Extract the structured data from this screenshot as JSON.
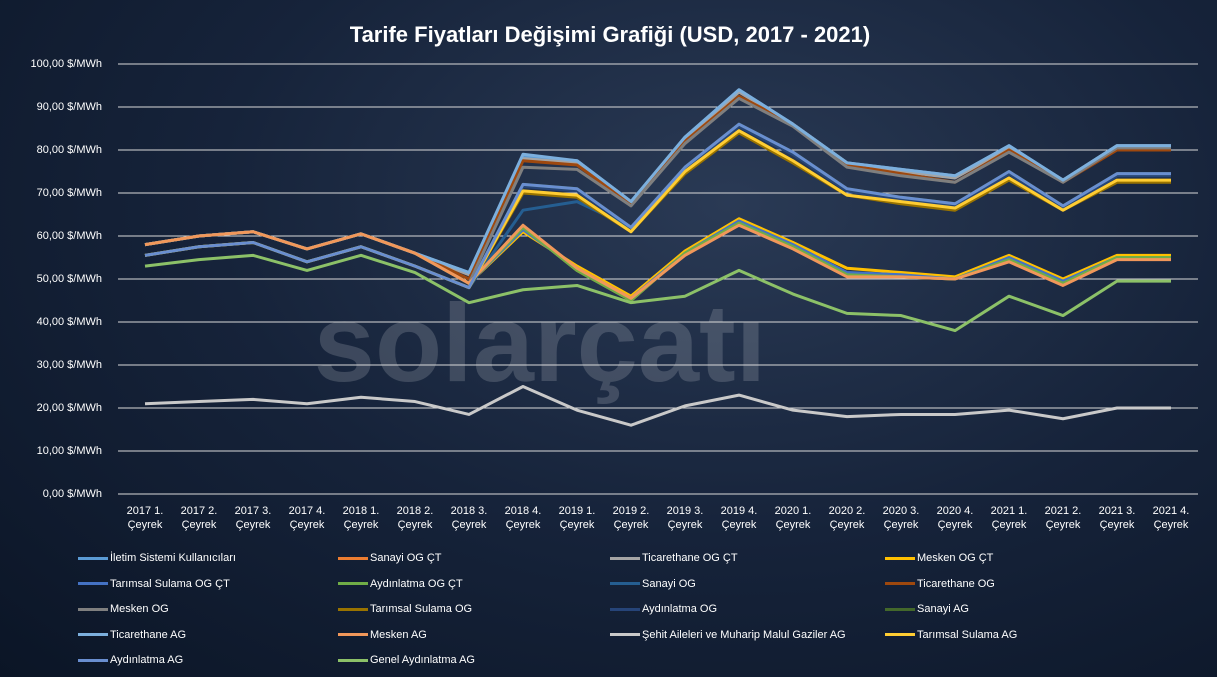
{
  "chart_data": {
    "type": "line",
    "title": "Tarife Fiyatları Değişimi Grafiği (USD, 2017 - 2021)",
    "watermark": "solarçatı",
    "categories": [
      "2017 1. Çeyrek",
      "2017 2. Çeyrek",
      "2017 3. Çeyrek",
      "2017 4. Çeyrek",
      "2018 1. Çeyrek",
      "2018 2. Çeyrek",
      "2018 3. Çeyrek",
      "2018 4. Çeyrek",
      "2019 1. Çeyrek",
      "2019 2. Çeyrek",
      "2019 3. Çeyrek",
      "2019 4. Çeyrek",
      "2020 1. Çeyrek",
      "2020 2. Çeyrek",
      "2020 3. Çeyrek",
      "2020 4. Çeyrek",
      "2021 1. Çeyrek",
      "2021 2. Çeyrek",
      "2021 3. Çeyrek",
      "2021 4. Çeyrek"
    ],
    "ylim": [
      0,
      100
    ],
    "yticks": [
      {
        "value": 0,
        "label": "0,00 $/MWh"
      },
      {
        "value": 10,
        "label": "10,00 $/MWh"
      },
      {
        "value": 20,
        "label": "20,00 $/MWh"
      },
      {
        "value": 30,
        "label": "30,00 $/MWh"
      },
      {
        "value": 40,
        "label": "40,00 $/MWh"
      },
      {
        "value": 50,
        "label": "50,00 $/MWh"
      },
      {
        "value": 60,
        "label": "60,00 $/MWh"
      },
      {
        "value": 70,
        "label": "70,00 $/MWh"
      },
      {
        "value": 80,
        "label": "80,00 $/MWh"
      },
      {
        "value": 90,
        "label": "90,00 $/MWh"
      },
      {
        "value": 100,
        "label": "100,00 $/MWh"
      }
    ],
    "grid": true,
    "series": [
      {
        "name": "İletim Sistemi Kullanıcıları",
        "color": "#5b9bd5",
        "values": [
          58,
          60,
          61,
          57,
          60.5,
          56,
          51.5,
          78.5,
          77.5,
          68,
          83,
          94,
          86,
          77,
          75.5,
          74,
          81,
          73,
          81,
          81
        ]
      },
      {
        "name": "Sanayi OG ÇT",
        "color": "#ed7d31",
        "values": [
          58,
          60,
          61,
          57,
          60.5,
          56,
          49,
          62,
          52,
          45,
          56,
          63,
          57.5,
          51,
          50.5,
          50,
          54.5,
          49,
          55,
          55
        ]
      },
      {
        "name": "Ticarethane OG ÇT",
        "color": "#a5a5a5",
        "values": [
          58,
          60,
          61,
          57,
          60.5,
          56,
          51,
          78,
          77,
          67.5,
          82.5,
          93.5,
          86,
          77,
          75,
          73.5,
          80.5,
          73,
          81,
          81
        ]
      },
      {
        "name": "Mesken OG ÇT",
        "color": "#ffc000",
        "values": [
          58,
          60,
          61,
          57,
          60.5,
          56,
          49,
          61,
          53,
          46,
          56.5,
          64,
          58.5,
          52.5,
          51.5,
          50.5,
          55.5,
          50,
          55.5,
          55.5
        ]
      },
      {
        "name": "Tarımsal Sulama OG ÇT",
        "color": "#4472c4",
        "values": [
          58,
          60,
          61,
          57,
          60.5,
          56,
          49,
          61.5,
          52.5,
          45.5,
          56,
          63.5,
          58,
          51.5,
          51,
          50,
          55,
          49.5,
          55,
          55
        ]
      },
      {
        "name": "Aydınlatma OG ÇT",
        "color": "#70ad47",
        "values": [
          58,
          60,
          61,
          57,
          60.5,
          56,
          49,
          62,
          52,
          45,
          56,
          63,
          57.5,
          51,
          50.5,
          50,
          54.5,
          49,
          55,
          55
        ]
      },
      {
        "name": "Sanayi OG",
        "color": "#255e91",
        "values": [
          55.5,
          57.5,
          58.5,
          54,
          57.5,
          53,
          48,
          66,
          68,
          62,
          75.5,
          85.5,
          79,
          70.5,
          68.5,
          67,
          74.5,
          66.5,
          74,
          74
        ]
      },
      {
        "name": "Ticarethane OG",
        "color": "#9e480e",
        "values": [
          58,
          60,
          61,
          57,
          60.5,
          56,
          50,
          77.5,
          76.5,
          67.5,
          82,
          92.5,
          86,
          76.5,
          74.5,
          72.5,
          80,
          72.5,
          80,
          80
        ]
      },
      {
        "name": "Mesken OG",
        "color": "#7f7f7f",
        "values": [
          58,
          60,
          61,
          57,
          60.5,
          56,
          49,
          76,
          75.5,
          67,
          81.5,
          92,
          85.5,
          76,
          74,
          72.5,
          79.5,
          72.5,
          80.5,
          80.5
        ]
      },
      {
        "name": "Tarımsal Sulama OG",
        "color": "#997300",
        "values": [
          55.5,
          57.5,
          58.5,
          54,
          57.5,
          53,
          48,
          70,
          69,
          61,
          74.5,
          84,
          77,
          69.5,
          67.5,
          66,
          73,
          66,
          72.5,
          72.5
        ]
      },
      {
        "name": "Aydınlatma OG",
        "color": "#264478",
        "values": [
          55.5,
          57.5,
          58.5,
          54,
          57.5,
          53,
          48,
          71.5,
          70.5,
          62,
          75.5,
          85.5,
          79,
          70.5,
          68.5,
          67,
          74.5,
          66.5,
          74,
          74
        ]
      },
      {
        "name": "Sanayi AG",
        "color": "#43682b",
        "values": [
          55.5,
          57.5,
          58.5,
          54,
          57.5,
          53,
          48,
          72,
          71,
          62,
          76,
          86,
          79.5,
          71,
          69,
          67.5,
          75,
          67,
          74.5,
          74.5
        ]
      },
      {
        "name": "Ticarethane AG",
        "color": "#7cafdd",
        "values": [
          58,
          60,
          61,
          57,
          60.5,
          56,
          51.5,
          79,
          77.5,
          68,
          83,
          94,
          86,
          77,
          75.5,
          74,
          81,
          73,
          81,
          81
        ]
      },
      {
        "name": "Mesken AG",
        "color": "#f1975a",
        "values": [
          58,
          60,
          61,
          57,
          60.5,
          56,
          49,
          62.5,
          52.5,
          45.5,
          55.5,
          62.5,
          57,
          50.5,
          50.5,
          50,
          54,
          48.5,
          54.5,
          54.5
        ]
      },
      {
        "name": "Şehit Aileleri ve Muharip Malul Gaziler AG",
        "color": "#c9c9c9",
        "values": [
          21,
          21.5,
          22,
          21,
          22.5,
          21.5,
          18.5,
          25,
          19.5,
          16,
          20.5,
          23,
          19.5,
          18,
          18.5,
          18.5,
          19.5,
          17.5,
          20,
          20
        ]
      },
      {
        "name": "Tarımsal Sulama AG",
        "color": "#ffcd33",
        "values": [
          55.5,
          57.5,
          58.5,
          54,
          57.5,
          53,
          48,
          70.5,
          69.5,
          61,
          75,
          84.5,
          77.5,
          69.5,
          68,
          66.5,
          73.5,
          66,
          73,
          73
        ]
      },
      {
        "name": "Aydınlatma AG",
        "color": "#698ed0",
        "values": [
          55.5,
          57.5,
          58.5,
          54,
          57.5,
          53,
          48,
          72,
          71,
          62,
          76,
          86,
          79.5,
          71,
          69,
          67.5,
          75,
          67,
          74.5,
          74.5
        ]
      },
      {
        "name": "Genel Aydınlatma AG",
        "color": "#8cc168",
        "values": [
          53,
          54.5,
          55.5,
          52,
          55.5,
          51.5,
          44.5,
          47.5,
          48.5,
          44.5,
          46,
          52,
          46.5,
          42,
          41.5,
          38,
          46,
          41.5,
          49.5,
          49.5
        ]
      }
    ]
  }
}
